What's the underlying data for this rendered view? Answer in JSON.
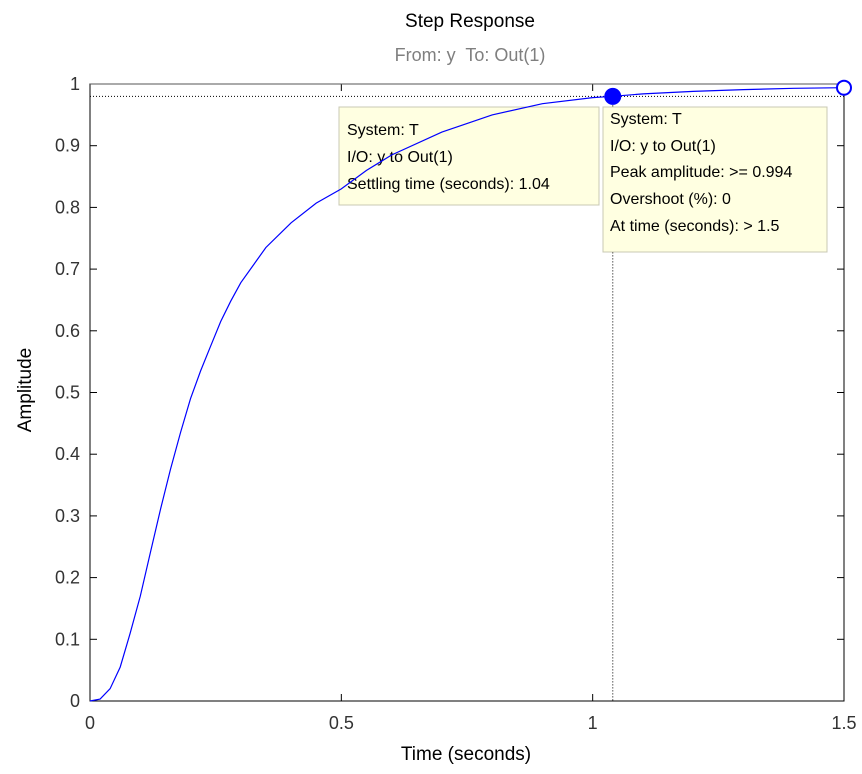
{
  "chart_data": {
    "type": "line",
    "title": "Step Response",
    "subtitle": "From: y  To: Out(1)",
    "xlabel": "Time (seconds)",
    "ylabel": "Amplitude",
    "xlim": [
      0,
      1.5
    ],
    "ylim": [
      0,
      1
    ],
    "x_ticks": [
      0,
      0.5,
      1,
      1.5
    ],
    "x_tick_labels": [
      "0",
      "0.5",
      "1",
      "1.5"
    ],
    "y_ticks": [
      0,
      0.1,
      0.2,
      0.3,
      0.4,
      0.5,
      0.6,
      0.7,
      0.8,
      0.9,
      1
    ],
    "y_tick_labels": [
      "0",
      "0.1",
      "0.2",
      "0.3",
      "0.4",
      "0.5",
      "0.6",
      "0.7",
      "0.8",
      "0.9",
      "1"
    ],
    "grid": false,
    "colors": {
      "line": "#0000ff",
      "guide": "#000000",
      "tip_bg": "#ffffe1",
      "tip_border": "#c8c8b4"
    },
    "series": [
      {
        "x": [
          0,
          0.02,
          0.04,
          0.06,
          0.08,
          0.1,
          0.12,
          0.14,
          0.16,
          0.18,
          0.2,
          0.22,
          0.24,
          0.26,
          0.28,
          0.3,
          0.35,
          0.4,
          0.45,
          0.5,
          0.55,
          0.6,
          0.7,
          0.8,
          0.9,
          1.0,
          1.04,
          1.1,
          1.2,
          1.3,
          1.4,
          1.5
        ],
        "values": [
          0,
          0.003,
          0.02,
          0.055,
          0.11,
          0.17,
          0.24,
          0.31,
          0.375,
          0.435,
          0.49,
          0.535,
          0.575,
          0.615,
          0.648,
          0.678,
          0.735,
          0.775,
          0.807,
          0.83,
          0.86,
          0.885,
          0.922,
          0.95,
          0.968,
          0.978,
          0.98,
          0.984,
          0.988,
          0.991,
          0.993,
          0.994
        ]
      }
    ],
    "settling_marker": {
      "x": 1.04,
      "y": 0.98
    },
    "peak_marker": {
      "x": 1.5,
      "y": 0.994
    },
    "annotations": [
      {
        "lines": [
          "System: T",
          "I/O: y to Out(1)",
          "Settling time (seconds): 1.04"
        ]
      },
      {
        "lines": [
          "System: T",
          "I/O: y to Out(1)",
          "Peak amplitude: >= 0.994",
          "Overshoot (%): 0",
          "At time (seconds): > 1.5"
        ]
      }
    ]
  }
}
